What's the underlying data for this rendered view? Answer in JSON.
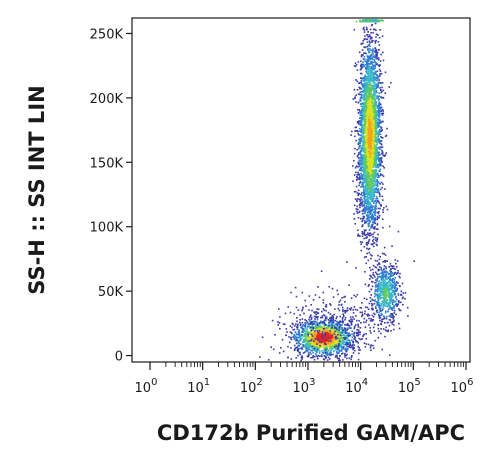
{
  "chart_data": {
    "type": "scatter",
    "title": "",
    "xlabel": "CD172b Purified GAM/APC",
    "ylabel": "SS-H :: SS INT LIN",
    "x_scale": "log",
    "y_scale": "linear",
    "xlim": [
      1,
      1000000
    ],
    "ylim": [
      -5000,
      262000
    ],
    "x_ticks": [
      {
        "value": 1,
        "base": "10",
        "exp": "0"
      },
      {
        "value": 10,
        "base": "10",
        "exp": "1"
      },
      {
        "value": 100,
        "base": "10",
        "exp": "2"
      },
      {
        "value": 1000,
        "base": "10",
        "exp": "3"
      },
      {
        "value": 10000,
        "base": "10",
        "exp": "4"
      },
      {
        "value": 100000,
        "base": "10",
        "exp": "5"
      },
      {
        "value": 1000000,
        "base": "10",
        "exp": "6"
      }
    ],
    "y_ticks": [
      {
        "value": 0,
        "label": "0"
      },
      {
        "value": 50000,
        "label": "50K"
      },
      {
        "value": 100000,
        "label": "100K"
      },
      {
        "value": 150000,
        "label": "150K"
      },
      {
        "value": 200000,
        "label": "200K"
      },
      {
        "value": 250000,
        "label": "250K"
      }
    ],
    "grid": false,
    "legend": "none",
    "density_colors": [
      "#3a3aa8",
      "#2f7fd1",
      "#36b8c8",
      "#5ec960",
      "#d9e021",
      "#f7a21b",
      "#e8251e"
    ],
    "populations": [
      {
        "x_center": 2000,
        "x_spread_decades": 0.28,
        "y_center": 14000,
        "y_spread": 7000,
        "count": 1400,
        "peak_density": 1.0
      },
      {
        "x_center": 15000,
        "x_spread_decades": 0.11,
        "y_center": 170000,
        "y_spread": 38000,
        "count": 3200,
        "peak_density": 0.75
      },
      {
        "x_center": 30000,
        "x_spread_decades": 0.14,
        "y_center": 48000,
        "y_spread": 12000,
        "count": 650,
        "peak_density": 0.45
      },
      {
        "x_center": 3000,
        "x_spread_decades": 0.5,
        "y_center": 22000,
        "y_spread": 14000,
        "count": 400,
        "peak_density": 0.05
      }
    ]
  }
}
